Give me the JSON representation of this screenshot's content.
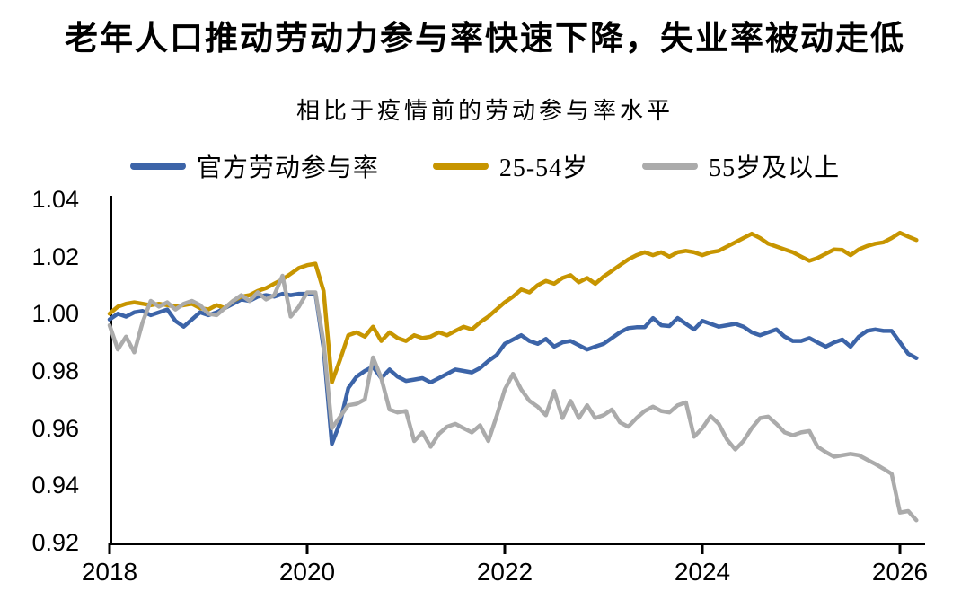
{
  "title": {
    "text": "老年人口推动劳动力参与率快速下降，失业率被动走低"
  },
  "subtitle": {
    "text": "相比于疫情前的劳动参与率水平"
  },
  "axis": {
    "color": "#000000"
  },
  "legend": {
    "items": [
      {
        "label": "官方劳动参与率",
        "color": "#3C64A8"
      },
      {
        "label": "25-54岁",
        "color": "#C79500"
      },
      {
        "label": "55岁及以上",
        "color": "#ABABAB"
      }
    ]
  },
  "chart_data": {
    "type": "line",
    "title": "相比于疫情前的劳动参与率水平",
    "xlabel": "",
    "ylabel": "",
    "x_start": 2018,
    "x_step_months": 1,
    "xlim": [
      2018,
      2026.33
    ],
    "ylim": [
      0.92,
      1.04
    ],
    "xticks": [
      2018,
      2020,
      2022,
      2024,
      2026
    ],
    "yticks": [
      0.92,
      0.94,
      0.96,
      0.98,
      1.0,
      1.02,
      1.04
    ],
    "grid": false,
    "legend_position": "top",
    "series": [
      {
        "key": "official-lfpr",
        "name": "官方劳动参与率",
        "color": "#3C64A8",
        "values": [
          0.998,
          1.0,
          0.999,
          1.0005,
          1.001,
          0.9995,
          1.0005,
          1.0015,
          0.9975,
          0.9955,
          0.998,
          1.0005,
          0.9995,
          1.0005,
          1.002,
          1.0035,
          1.005,
          1.0045,
          1.006,
          1.0065,
          1.006,
          1.007,
          1.0065,
          1.007,
          1.007,
          1.007,
          0.988,
          0.9545,
          0.962,
          0.974,
          0.978,
          0.98,
          0.9815,
          0.9775,
          0.9805,
          0.978,
          0.9765,
          0.977,
          0.9775,
          0.976,
          0.9775,
          0.979,
          0.9805,
          0.98,
          0.9795,
          0.981,
          0.9835,
          0.9855,
          0.9895,
          0.991,
          0.9925,
          0.9905,
          0.9895,
          0.9912,
          0.9885,
          0.99,
          0.9905,
          0.989,
          0.9875,
          0.9885,
          0.9895,
          0.9915,
          0.9935,
          0.995,
          0.9953,
          0.9953,
          0.9985,
          0.996,
          0.9957,
          0.9985,
          0.9965,
          0.9945,
          0.9975,
          0.9965,
          0.9955,
          0.996,
          0.9965,
          0.9955,
          0.9935,
          0.9925,
          0.9935,
          0.9945,
          0.992,
          0.9905,
          0.9905,
          0.9915,
          0.99,
          0.9885,
          0.99,
          0.991,
          0.9885,
          0.992,
          0.994,
          0.9945,
          0.994,
          0.994,
          0.99,
          0.986,
          0.9845
        ]
      },
      {
        "key": "age-25-54",
        "name": "25-54岁",
        "color": "#C79500",
        "values": [
          1.0,
          1.0025,
          1.0035,
          1.004,
          1.0035,
          1.003,
          1.0035,
          1.003,
          1.0025,
          1.003,
          1.0035,
          1.002,
          1.0015,
          1.003,
          1.002,
          1.0045,
          1.006,
          1.0065,
          1.008,
          1.009,
          1.0105,
          1.012,
          1.014,
          1.016,
          1.017,
          1.0175,
          1.008,
          0.976,
          0.984,
          0.9925,
          0.9935,
          0.992,
          0.9955,
          0.9905,
          0.9935,
          0.9915,
          0.9905,
          0.9925,
          0.9915,
          0.992,
          0.9935,
          0.9925,
          0.994,
          0.9955,
          0.9945,
          0.997,
          0.999,
          1.0015,
          1.004,
          1.006,
          1.0085,
          1.0075,
          1.01,
          1.0115,
          1.0105,
          1.0125,
          1.0135,
          1.011,
          1.0125,
          1.0105,
          1.013,
          1.015,
          1.017,
          1.019,
          1.0205,
          1.0215,
          1.0205,
          1.0215,
          1.02,
          1.0215,
          1.022,
          1.0215,
          1.0205,
          1.0215,
          1.022,
          1.0235,
          1.025,
          1.0265,
          1.028,
          1.0265,
          1.0245,
          1.0235,
          1.0225,
          1.0215,
          1.02,
          1.0185,
          1.0195,
          1.021,
          1.0225,
          1.0223,
          1.0205,
          1.0225,
          1.0237,
          1.0245,
          1.025,
          1.0265,
          1.0283,
          1.027,
          1.0258
        ]
      },
      {
        "key": "age-55-plus",
        "name": "55岁及以上",
        "color": "#ABABAB",
        "values": [
          0.996,
          0.9875,
          0.992,
          0.9865,
          0.997,
          1.0045,
          1.0025,
          1.004,
          1.0015,
          1.0035,
          1.0045,
          1.003,
          1.0,
          0.9995,
          1.002,
          1.0045,
          1.0065,
          1.0045,
          1.0075,
          1.005,
          1.0065,
          1.0133,
          0.999,
          1.0025,
          1.0075,
          1.0075,
          0.99,
          0.96,
          0.964,
          0.968,
          0.9685,
          0.97,
          0.9847,
          0.9775,
          0.9665,
          0.9655,
          0.966,
          0.9555,
          0.9585,
          0.9535,
          0.958,
          0.9605,
          0.9615,
          0.96,
          0.9585,
          0.961,
          0.9555,
          0.964,
          0.9735,
          0.979,
          0.9735,
          0.9695,
          0.9675,
          0.9645,
          0.973,
          0.9635,
          0.9695,
          0.9635,
          0.968,
          0.9635,
          0.9645,
          0.9665,
          0.962,
          0.9605,
          0.9635,
          0.966,
          0.9675,
          0.966,
          0.9655,
          0.968,
          0.969,
          0.957,
          0.96,
          0.9642,
          0.9615,
          0.956,
          0.9525,
          0.9555,
          0.96,
          0.9635,
          0.964,
          0.9615,
          0.9585,
          0.9575,
          0.9585,
          0.959,
          0.9535,
          0.9516,
          0.95,
          0.9505,
          0.951,
          0.9505,
          0.949,
          0.9475,
          0.9458,
          0.944,
          0.9305,
          0.931,
          0.9278
        ]
      }
    ]
  }
}
